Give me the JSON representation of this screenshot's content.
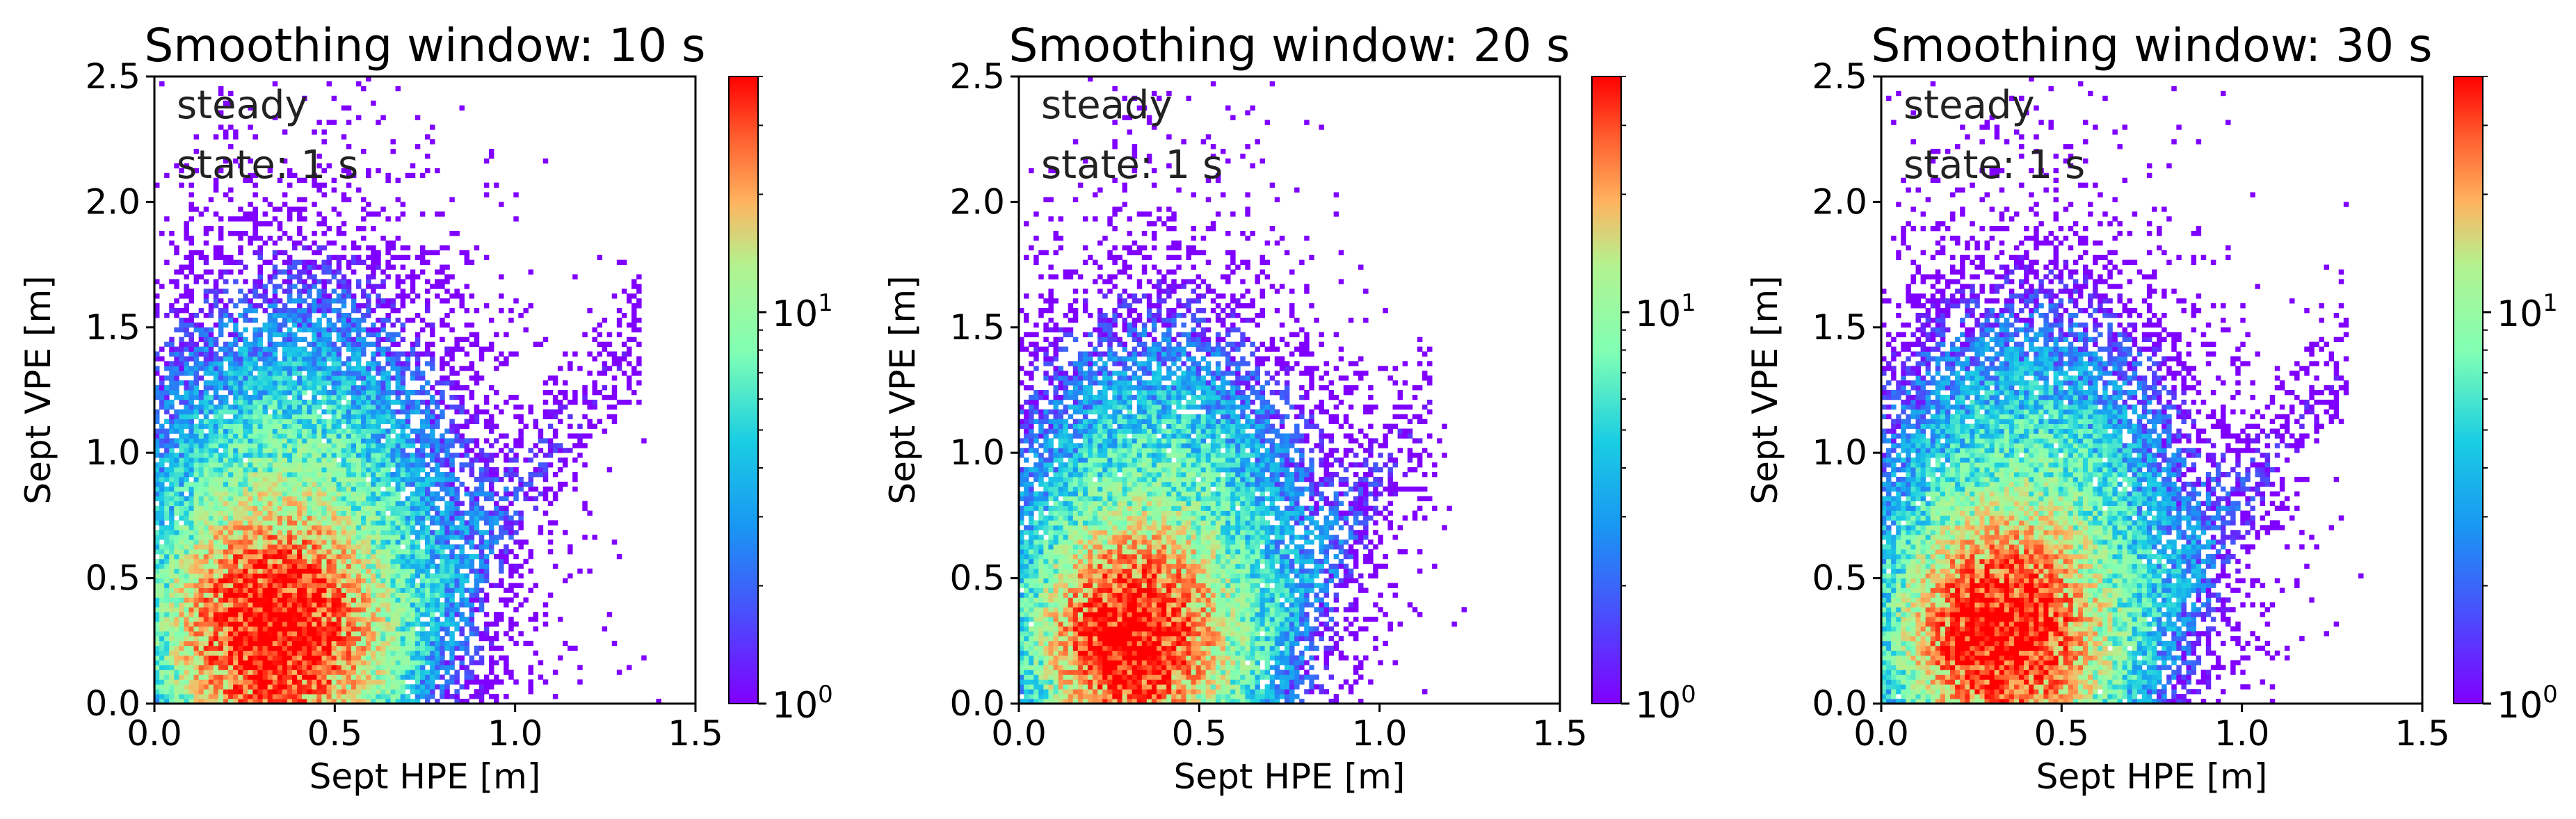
{
  "chart_data": [
    {
      "type": "heatmap",
      "title": "Smoothing window: 10 s",
      "annotation": [
        "steady",
        "state: 1 s"
      ],
      "xlabel": "Sept HPE [m]",
      "ylabel": "Sept VPE [m]",
      "xlim": [
        0.0,
        1.5
      ],
      "ylim": [
        0.0,
        2.5
      ],
      "xticks": [
        "0.0",
        "0.5",
        "1.0",
        "1.5"
      ],
      "yticks": [
        "0.0",
        "0.5",
        "1.0",
        "1.5",
        "2.0",
        "2.5"
      ],
      "colorbar": {
        "scale": "log",
        "ticks": [
          {
            "base": "10",
            "exp": "0"
          },
          {
            "base": "10",
            "exp": "1"
          }
        ],
        "max_count": 40,
        "colormap": "rainbow"
      },
      "density": {
        "core": {
          "x": 0.33,
          "y": 0.28,
          "sx": 0.16,
          "sy": 0.26
        },
        "halo": {
          "x": 0.38,
          "y": 0.6,
          "sx": 0.26,
          "sy": 0.55
        },
        "plume": {
          "x0": 0.55,
          "x1": 1.35,
          "y0": 0.0,
          "y1": 1.5
        },
        "spread": 2.0
      }
    },
    {
      "type": "heatmap",
      "title": "Smoothing window: 20 s",
      "annotation": [
        "steady",
        "state: 1 s"
      ],
      "xlabel": "Sept HPE [m]",
      "ylabel": "Sept VPE [m]",
      "xlim": [
        0.0,
        1.5
      ],
      "ylim": [
        0.0,
        2.5
      ],
      "xticks": [
        "0.0",
        "0.5",
        "1.0",
        "1.5"
      ],
      "yticks": [
        "0.0",
        "0.5",
        "1.0",
        "1.5",
        "2.0",
        "2.5"
      ],
      "colorbar": {
        "scale": "log",
        "ticks": [
          {
            "base": "10",
            "exp": "0"
          },
          {
            "base": "10",
            "exp": "1"
          }
        ],
        "max_count": 40,
        "colormap": "rainbow"
      },
      "density": {
        "core": {
          "x": 0.31,
          "y": 0.25,
          "sx": 0.14,
          "sy": 0.23
        },
        "halo": {
          "x": 0.38,
          "y": 0.55,
          "sx": 0.24,
          "sy": 0.5
        },
        "plume": {
          "x0": 0.55,
          "x1": 1.15,
          "y0": 0.0,
          "y1": 1.2
        },
        "spread": 1.7
      }
    },
    {
      "type": "heatmap",
      "title": "Smoothing window: 30 s",
      "annotation": [
        "steady",
        "state: 1 s"
      ],
      "xlabel": "Sept HPE [m]",
      "ylabel": "Sept VPE [m]",
      "xlim": [
        0.0,
        1.5
      ],
      "ylim": [
        0.0,
        2.5
      ],
      "xticks": [
        "0.0",
        "0.5",
        "1.0",
        "1.5"
      ],
      "yticks": [
        "0.0",
        "0.5",
        "1.0",
        "1.5",
        "2.0",
        "2.5"
      ],
      "colorbar": {
        "scale": "log",
        "ticks": [
          {
            "base": "10",
            "exp": "0"
          },
          {
            "base": "10",
            "exp": "1"
          }
        ],
        "max_count": 40,
        "colormap": "rainbow"
      },
      "density": {
        "core": {
          "x": 0.33,
          "y": 0.27,
          "sx": 0.15,
          "sy": 0.24
        },
        "halo": {
          "x": 0.4,
          "y": 0.58,
          "sx": 0.25,
          "sy": 0.52
        },
        "plume": {
          "x0": 0.55,
          "x1": 1.3,
          "y0": 0.0,
          "y1": 1.4
        },
        "spread": 1.9
      }
    }
  ]
}
